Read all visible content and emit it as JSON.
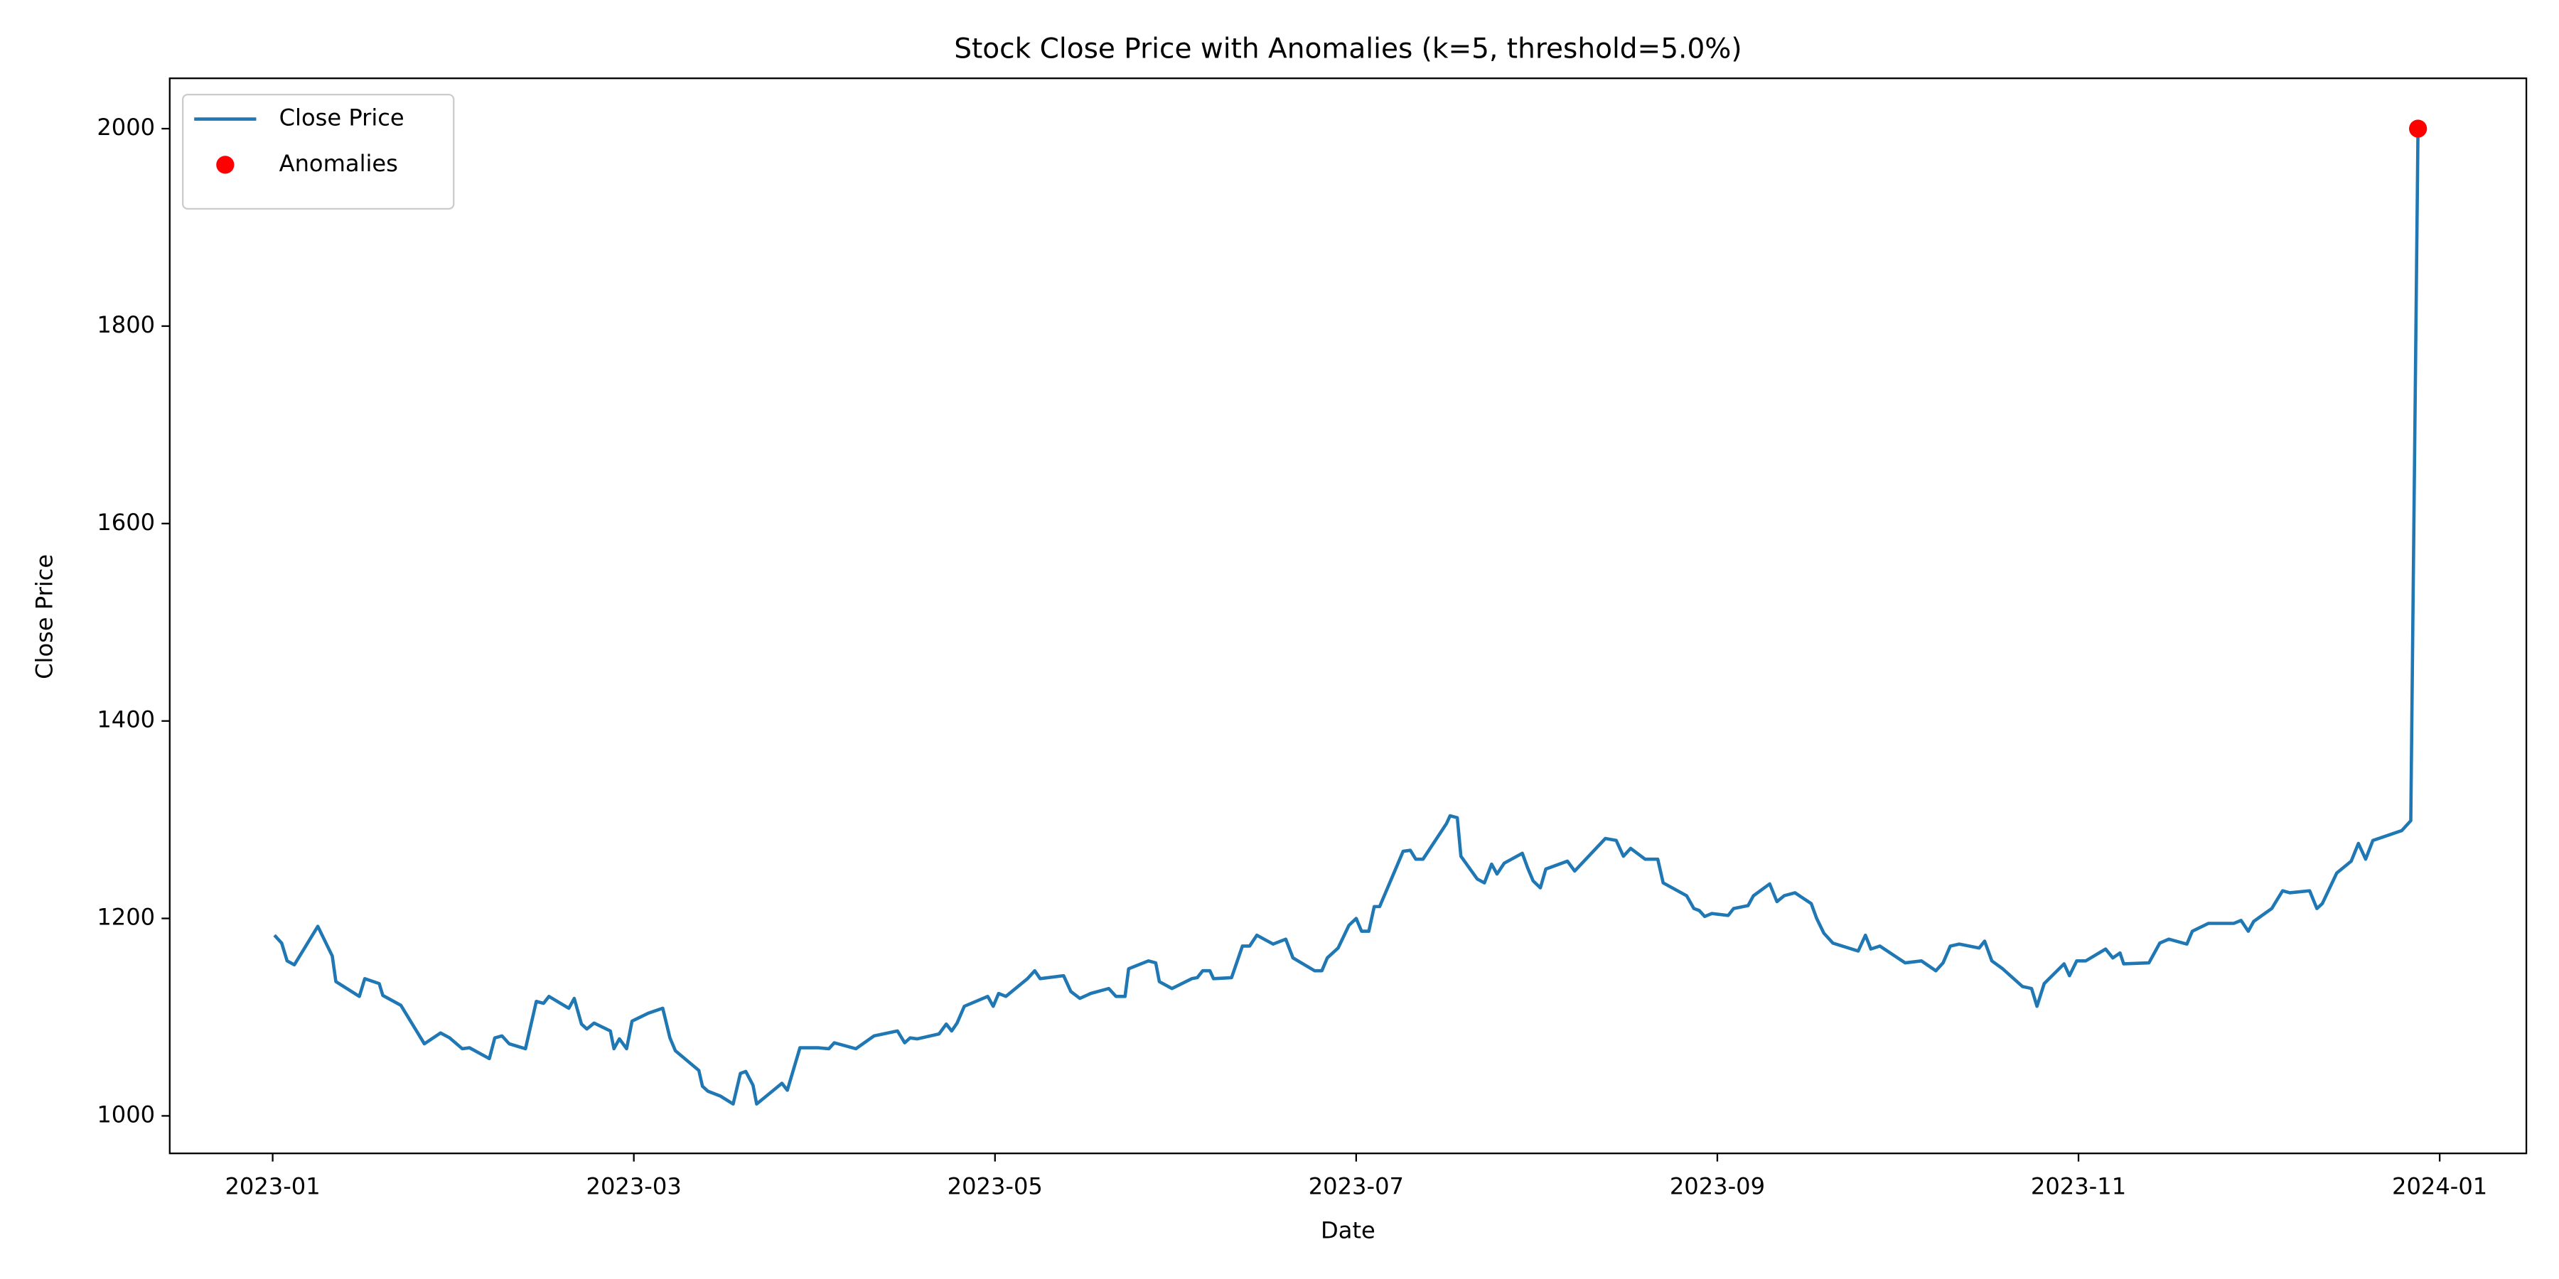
{
  "chart_data": {
    "type": "line",
    "title": "Stock Close Price with Anomalies (k=5, threshold=5.0%)",
    "x_label": "Date",
    "y_label": "Close Price",
    "xlim": [
      -0.57,
      12.48
    ],
    "xticks": [
      {
        "value": 0,
        "label": "2023-01"
      },
      {
        "value": 2,
        "label": "2023-03"
      },
      {
        "value": 4,
        "label": "2023-05"
      },
      {
        "value": 6,
        "label": "2023-07"
      },
      {
        "value": 8,
        "label": "2023-09"
      },
      {
        "value": 10,
        "label": "2023-11"
      },
      {
        "value": 12,
        "label": "2024-01"
      }
    ],
    "ylim": [
      962,
      2051
    ],
    "yticks": [
      1000,
      1200,
      1400,
      1600,
      1800,
      2000
    ],
    "grid": false,
    "legend": "upper left",
    "series": [
      {
        "name": "Close Price",
        "type": "line",
        "color": "#1f77b4",
        "x": [
          0.01,
          0.05,
          0.08,
          0.12,
          0.25,
          0.33,
          0.35,
          0.48,
          0.51,
          0.59,
          0.61,
          0.71,
          0.77,
          0.84,
          0.93,
          0.98,
          1.05,
          1.09,
          1.2,
          1.23,
          1.27,
          1.31,
          1.4,
          1.46,
          1.5,
          1.53,
          1.64,
          1.67,
          1.71,
          1.74,
          1.78,
          1.87,
          1.89,
          1.92,
          1.96,
          1.99,
          2.08,
          2.16,
          2.2,
          2.23,
          2.36,
          2.38,
          2.41,
          2.48,
          2.55,
          2.59,
          2.62,
          2.66,
          2.68,
          2.82,
          2.85,
          2.92,
          3.02,
          3.08,
          3.11,
          3.23,
          3.33,
          3.46,
          3.5,
          3.53,
          3.57,
          3.69,
          3.73,
          3.76,
          3.79,
          3.83,
          3.96,
          3.99,
          4.02,
          4.06,
          4.18,
          4.22,
          4.25,
          4.38,
          4.42,
          4.47,
          4.53,
          4.63,
          4.67,
          4.72,
          4.74,
          4.85,
          4.89,
          4.91,
          4.98,
          5.09,
          5.12,
          5.15,
          5.19,
          5.21,
          5.31,
          5.37,
          5.41,
          5.45,
          5.54,
          5.61,
          5.65,
          5.77,
          5.81,
          5.84,
          5.9,
          5.96,
          6.0,
          6.03,
          6.07,
          6.1,
          6.13,
          6.26,
          6.3,
          6.33,
          6.37,
          6.5,
          6.52,
          6.56,
          6.58,
          6.67,
          6.71,
          6.75,
          6.78,
          6.82,
          6.92,
          6.95,
          6.98,
          7.02,
          7.05,
          7.17,
          7.21,
          7.38,
          7.44,
          7.48,
          7.52,
          7.6,
          7.67,
          7.7,
          7.83,
          7.87,
          7.9,
          7.93,
          7.97,
          8.06,
          8.09,
          8.17,
          8.2,
          8.29,
          8.33,
          8.37,
          8.43,
          8.52,
          8.55,
          8.59,
          8.64,
          8.78,
          8.82,
          8.85,
          8.9,
          9.04,
          9.13,
          9.21,
          9.25,
          9.29,
          9.34,
          9.45,
          9.48,
          9.52,
          9.58,
          9.69,
          9.74,
          9.77,
          9.81,
          9.92,
          9.95,
          9.99,
          10.04,
          10.15,
          10.19,
          10.23,
          10.25,
          10.39,
          10.45,
          10.5,
          10.6,
          10.63,
          10.72,
          10.86,
          10.9,
          10.94,
          10.97,
          11.07,
          11.13,
          11.17,
          11.28,
          11.32,
          11.35,
          11.43,
          11.51,
          11.55,
          11.59,
          11.63,
          11.79,
          11.84,
          11.88
        ],
        "values": [
          1183,
          1175,
          1157,
          1153,
          1192,
          1162,
          1136,
          1121,
          1139,
          1134,
          1122,
          1112,
          1094,
          1073,
          1084,
          1079,
          1068,
          1069,
          1058,
          1079,
          1081,
          1073,
          1068,
          1116,
          1114,
          1121,
          1109,
          1119,
          1093,
          1088,
          1094,
          1086,
          1068,
          1078,
          1068,
          1096,
          1104,
          1109,
          1079,
          1066,
          1046,
          1030,
          1025,
          1020,
          1012,
          1043,
          1045,
          1031,
          1012,
          1033,
          1026,
          1069,
          1069,
          1068,
          1074,
          1068,
          1081,
          1086,
          1074,
          1079,
          1078,
          1083,
          1093,
          1086,
          1094,
          1111,
          1121,
          1111,
          1124,
          1121,
          1139,
          1147,
          1139,
          1142,
          1126,
          1119,
          1124,
          1129,
          1121,
          1121,
          1149,
          1157,
          1155,
          1136,
          1129,
          1139,
          1140,
          1147,
          1147,
          1139,
          1140,
          1172,
          1172,
          1183,
          1174,
          1179,
          1160,
          1147,
          1147,
          1160,
          1170,
          1193,
          1200,
          1187,
          1187,
          1212,
          1212,
          1268,
          1269,
          1260,
          1260,
          1296,
          1304,
          1302,
          1263,
          1240,
          1236,
          1255,
          1245,
          1256,
          1266,
          1251,
          1238,
          1231,
          1250,
          1258,
          1248,
          1281,
          1279,
          1263,
          1271,
          1260,
          1260,
          1236,
          1223,
          1210,
          1208,
          1202,
          1205,
          1203,
          1210,
          1213,
          1223,
          1235,
          1217,
          1223,
          1226,
          1215,
          1200,
          1185,
          1175,
          1167,
          1183,
          1169,
          1172,
          1155,
          1157,
          1147,
          1155,
          1172,
          1174,
          1170,
          1177,
          1157,
          1149,
          1131,
          1129,
          1111,
          1134,
          1154,
          1142,
          1157,
          1157,
          1169,
          1160,
          1165,
          1154,
          1155,
          1175,
          1179,
          1174,
          1187,
          1195,
          1195,
          1198,
          1187,
          1197,
          1210,
          1228,
          1226,
          1228,
          1210,
          1215,
          1246,
          1258,
          1276,
          1260,
          1279,
          1289,
          1299,
          2000
        ]
      },
      {
        "name": "Anomalies",
        "type": "scatter",
        "color": "#ff0000",
        "x": [
          11.88
        ],
        "values": [
          2000
        ]
      }
    ]
  }
}
